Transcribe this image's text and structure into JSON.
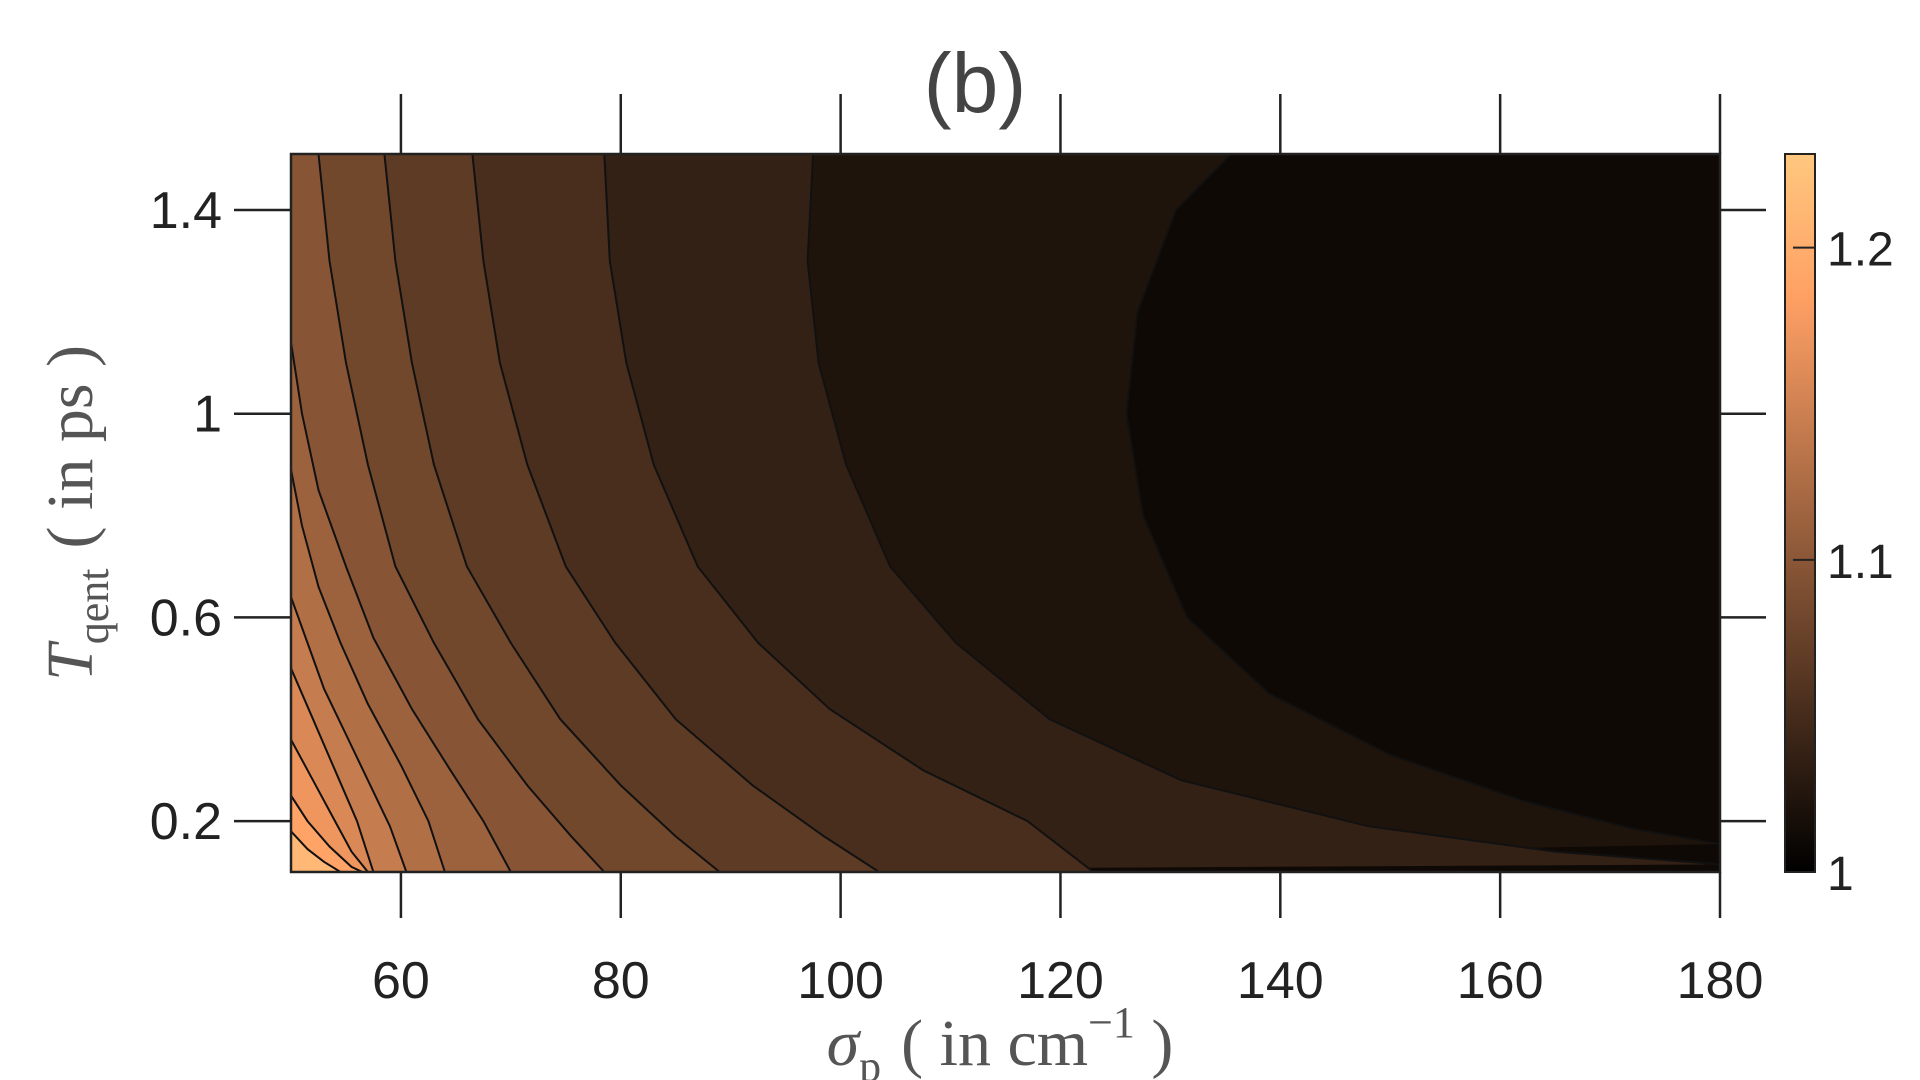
{
  "chart_data": {
    "type": "heatmap",
    "subtype": "filled-contour",
    "title": "(b)",
    "xlabel": {
      "symbol": "σ",
      "subscript": "p",
      "unit_pre": "( in cm",
      "superscript": "−1",
      "unit_post": " )"
    },
    "ylabel": {
      "symbol": "T",
      "subscript": "qent",
      "unit": "( in ps )"
    },
    "xlim": [
      50,
      180
    ],
    "ylim": [
      0.1,
      1.51
    ],
    "x_ticks": [
      60,
      80,
      100,
      120,
      140,
      160,
      180
    ],
    "x_tick_labels": [
      "60",
      "80",
      "100",
      "120",
      "140",
      "160",
      "180"
    ],
    "y_ticks": [
      0.2,
      0.6,
      1.0,
      1.4
    ],
    "y_tick_labels": [
      "0.2",
      "0.6",
      "1",
      "1.4"
    ],
    "colorbar": {
      "range": [
        1.0,
        1.23
      ],
      "ticks": [
        1.0,
        1.1,
        1.2
      ],
      "tick_labels": [
        "1",
        "1.1",
        "1.2"
      ],
      "colormap": "copper",
      "stops": [
        [
          "0",
          "#000000"
        ],
        [
          "0.8",
          "#ffa065"
        ],
        [
          "1",
          "#ffc77f"
        ]
      ]
    },
    "grid": false,
    "contour_levels": [
      1.015,
      1.03,
      1.045,
      1.06,
      1.075,
      1.09,
      1.105,
      1.12,
      1.135,
      1.15,
      1.165,
      1.18,
      1.195
    ],
    "contour_lines": [
      {
        "level": 1.015,
        "points": [
          [
            135.5,
            1.51
          ],
          [
            130.5,
            1.4
          ],
          [
            127,
            1.2
          ],
          [
            126,
            1.0
          ],
          [
            127.5,
            0.8
          ],
          [
            131.5,
            0.6
          ],
          [
            139,
            0.45
          ],
          [
            150,
            0.33
          ],
          [
            162,
            0.24
          ],
          [
            172,
            0.185
          ],
          [
            180,
            0.155
          ]
        ]
      },
      {
        "level": 1.03,
        "points": [
          [
            97.5,
            1.51
          ],
          [
            97,
            1.3
          ],
          [
            98,
            1.1
          ],
          [
            100.5,
            0.9
          ],
          [
            104.5,
            0.7
          ],
          [
            110.5,
            0.55
          ],
          [
            119,
            0.4
          ],
          [
            131,
            0.28
          ],
          [
            148,
            0.19
          ],
          [
            165,
            0.14
          ],
          [
            180,
            0.115
          ]
        ]
      },
      {
        "level": 1.045,
        "points": [
          [
            78.5,
            1.51
          ],
          [
            79,
            1.3
          ],
          [
            80.5,
            1.1
          ],
          [
            83,
            0.9
          ],
          [
            87,
            0.7
          ],
          [
            92.5,
            0.55
          ],
          [
            99,
            0.42
          ],
          [
            107.5,
            0.3
          ],
          [
            117,
            0.2
          ],
          [
            123,
            0.1
          ]
        ]
      },
      {
        "level": 1.06,
        "points": [
          [
            66.5,
            1.51
          ],
          [
            67.5,
            1.3
          ],
          [
            69,
            1.1
          ],
          [
            71.5,
            0.9
          ],
          [
            75,
            0.7
          ],
          [
            79.5,
            0.55
          ],
          [
            85,
            0.4
          ],
          [
            92,
            0.27
          ],
          [
            98.5,
            0.17
          ],
          [
            103.5,
            0.1
          ]
        ]
      },
      {
        "level": 1.075,
        "points": [
          [
            58.5,
            1.51
          ],
          [
            59.5,
            1.3
          ],
          [
            61,
            1.1
          ],
          [
            63,
            0.9
          ],
          [
            66,
            0.7
          ],
          [
            70,
            0.55
          ],
          [
            74.5,
            0.4
          ],
          [
            80,
            0.27
          ],
          [
            85,
            0.17
          ],
          [
            89,
            0.1
          ]
        ]
      },
      {
        "level": 1.09,
        "points": [
          [
            52.5,
            1.51
          ],
          [
            53.5,
            1.3
          ],
          [
            55,
            1.1
          ],
          [
            57,
            0.9
          ],
          [
            59.5,
            0.7
          ],
          [
            63,
            0.55
          ],
          [
            67,
            0.4
          ],
          [
            71.5,
            0.27
          ],
          [
            75.5,
            0.17
          ],
          [
            78.5,
            0.1
          ]
        ]
      },
      {
        "level": 1.105,
        "points": [
          [
            50,
            1.14
          ],
          [
            51,
            1.0
          ],
          [
            52.5,
            0.85
          ],
          [
            55,
            0.7
          ],
          [
            57.5,
            0.56
          ],
          [
            61,
            0.42
          ],
          [
            64.5,
            0.3
          ],
          [
            67.5,
            0.2
          ],
          [
            70,
            0.1
          ]
        ]
      },
      {
        "level": 1.12,
        "points": [
          [
            50,
            0.89
          ],
          [
            51,
            0.78
          ],
          [
            52.5,
            0.66
          ],
          [
            54.5,
            0.55
          ],
          [
            57,
            0.43
          ],
          [
            60,
            0.31
          ],
          [
            62.5,
            0.2
          ],
          [
            64,
            0.1
          ]
        ]
      },
      {
        "level": 1.135,
        "points": [
          [
            50,
            0.64
          ],
          [
            51.5,
            0.55
          ],
          [
            53,
            0.46
          ],
          [
            55,
            0.37
          ],
          [
            57,
            0.28
          ],
          [
            59,
            0.19
          ],
          [
            60.5,
            0.1
          ]
        ]
      },
      {
        "level": 1.15,
        "points": [
          [
            50,
            0.5
          ],
          [
            52,
            0.4
          ],
          [
            54,
            0.3
          ],
          [
            56,
            0.2
          ],
          [
            57.5,
            0.1
          ]
        ]
      },
      {
        "level": 1.165,
        "points": [
          [
            50,
            0.36
          ],
          [
            52,
            0.28
          ],
          [
            54,
            0.2
          ],
          [
            55.5,
            0.14
          ],
          [
            57,
            0.1
          ]
        ]
      },
      {
        "level": 1.18,
        "points": [
          [
            50,
            0.25
          ],
          [
            51.5,
            0.2
          ],
          [
            53.5,
            0.15
          ],
          [
            55.5,
            0.11
          ],
          [
            56.5,
            0.1
          ]
        ]
      },
      {
        "level": 1.195,
        "points": [
          [
            50,
            0.18
          ],
          [
            51.5,
            0.145
          ],
          [
            53,
            0.12
          ],
          [
            54.5,
            0.1
          ]
        ]
      }
    ]
  }
}
